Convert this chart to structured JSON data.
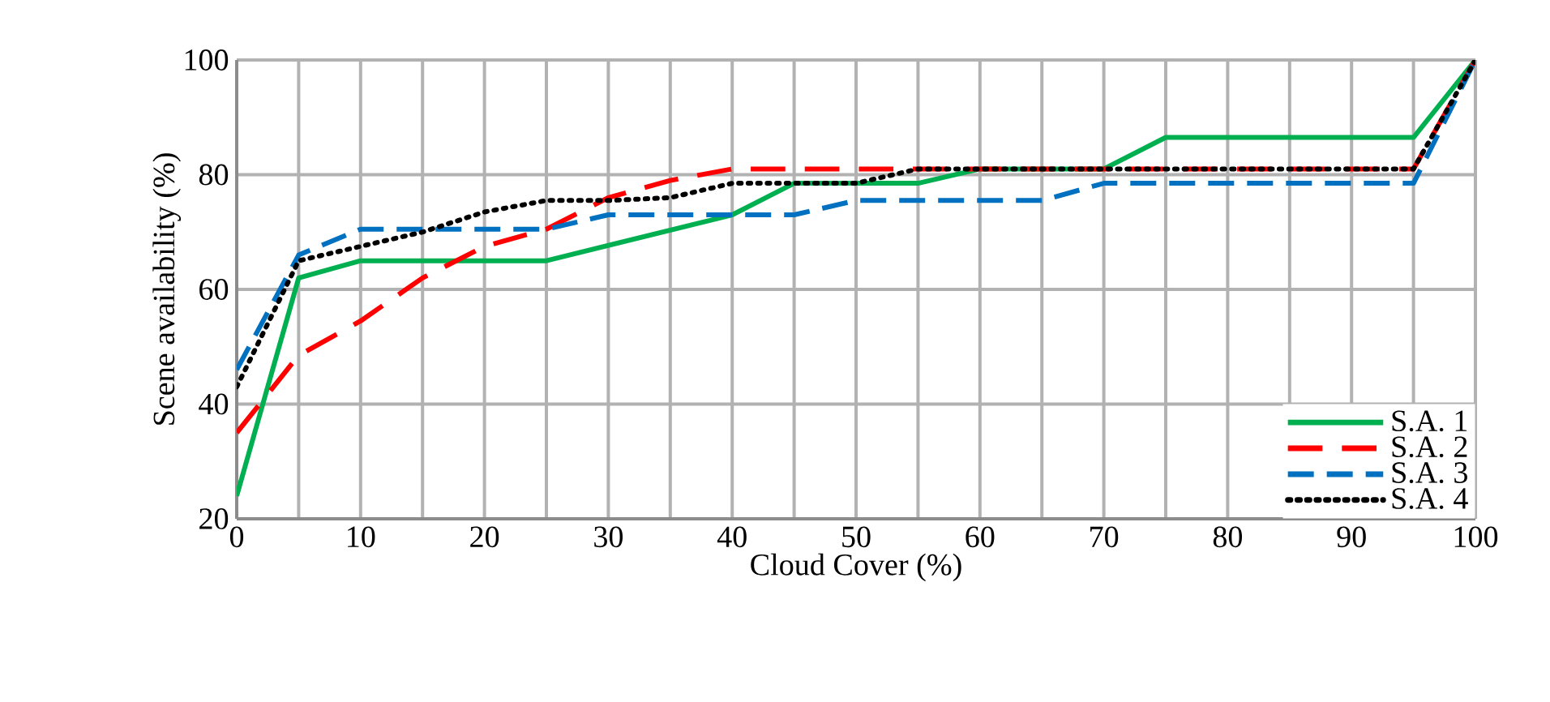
{
  "chart_data": {
    "type": "line",
    "xlabel": "Cloud Cover (%)",
    "ylabel": "Scene availability (%)",
    "xlim": [
      0,
      100
    ],
    "ylim": [
      20,
      100
    ],
    "xticks": [
      0,
      10,
      20,
      30,
      40,
      50,
      60,
      70,
      80,
      90,
      100
    ],
    "yticks": [
      20,
      40,
      60,
      80,
      100
    ],
    "grid": true,
    "legend": "bottom right",
    "series": [
      {
        "name": "S.A. 1",
        "color": "#00b050",
        "line_style": "solid",
        "x": [
          0,
          5,
          10,
          25,
          40,
          45,
          55,
          60,
          70,
          75,
          95,
          100
        ],
        "values": [
          24,
          62,
          65,
          65,
          73,
          78.5,
          78.5,
          81,
          81,
          86.5,
          86.5,
          100
        ]
      },
      {
        "name": "S.A. 2",
        "color": "#ff0000",
        "line_style": "dashed",
        "x": [
          0,
          5,
          10,
          15,
          20,
          25,
          30,
          35,
          40,
          95,
          100
        ],
        "values": [
          35,
          48.5,
          54.5,
          62,
          67.5,
          70.5,
          76,
          79,
          81,
          81,
          100
        ]
      },
      {
        "name": "S.A. 3",
        "color": "#0070c0",
        "line_style": "dashed",
        "x": [
          0,
          5,
          10,
          25,
          30,
          45,
          50,
          65,
          70,
          95,
          100
        ],
        "values": [
          46,
          66,
          70.5,
          70.5,
          73,
          73,
          75.5,
          75.5,
          78.5,
          78.5,
          100
        ]
      },
      {
        "name": "S.A. 4",
        "color": "#000000",
        "line_style": "dotted",
        "x": [
          0,
          5,
          10,
          15,
          20,
          25,
          30,
          35,
          40,
          50,
          55,
          95,
          100
        ],
        "values": [
          43,
          65,
          67.5,
          70,
          73.5,
          75.5,
          75.5,
          76,
          78.5,
          78.5,
          81,
          81,
          100
        ]
      }
    ]
  }
}
